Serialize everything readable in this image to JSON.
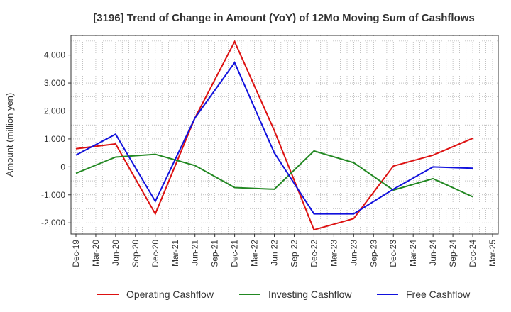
{
  "chart_data": {
    "type": "line",
    "title": "[3196]  Trend of Change in Amount (YoY) of 12Mo Moving Sum of Cashflows",
    "ylabel": "Amount (million yen)",
    "xlabel": "",
    "ylim": [
      -2400,
      4700
    ],
    "yticks": [
      -2000,
      -1000,
      0,
      1000,
      2000,
      3000,
      4000
    ],
    "ytick_labels": [
      "-2,000",
      "-1,000",
      "0",
      "1,000",
      "2,000",
      "3,000",
      "4,000"
    ],
    "categories": [
      "Dec-19",
      "Mar-20",
      "Jun-20",
      "Sep-20",
      "Dec-20",
      "Mar-21",
      "Jun-21",
      "Sep-21",
      "Dec-21",
      "Mar-22",
      "Jun-22",
      "Sep-22",
      "Dec-22",
      "Mar-23",
      "Jun-23",
      "Sep-23",
      "Dec-23",
      "Mar-24",
      "Jun-24",
      "Sep-24",
      "Dec-24",
      "Mar-25"
    ],
    "grid": true,
    "legend_position": "bottom",
    "series": [
      {
        "name": "Operating Cashflow",
        "color": "#dd1111",
        "values": [
          {
            "x": "Dec-19",
            "y": 650
          },
          {
            "x": "Jun-20",
            "y": 820
          },
          {
            "x": "Dec-20",
            "y": -1680
          },
          {
            "x": "Jun-21",
            "y": 1750
          },
          {
            "x": "Dec-21",
            "y": 4480
          },
          {
            "x": "Jun-22",
            "y": 1300
          },
          {
            "x": "Dec-22",
            "y": -2250
          },
          {
            "x": "Jun-23",
            "y": -1850
          },
          {
            "x": "Dec-23",
            "y": 30
          },
          {
            "x": "Jun-24",
            "y": 420
          },
          {
            "x": "Dec-24",
            "y": 1020
          }
        ]
      },
      {
        "name": "Investing Cashflow",
        "color": "#228822",
        "values": [
          {
            "x": "Dec-19",
            "y": -230
          },
          {
            "x": "Jun-20",
            "y": 350
          },
          {
            "x": "Dec-20",
            "y": 450
          },
          {
            "x": "Jun-21",
            "y": 50
          },
          {
            "x": "Dec-21",
            "y": -740
          },
          {
            "x": "Jun-22",
            "y": -800
          },
          {
            "x": "Dec-22",
            "y": 570
          },
          {
            "x": "Jun-23",
            "y": 150
          },
          {
            "x": "Dec-23",
            "y": -830
          },
          {
            "x": "Jun-24",
            "y": -420
          },
          {
            "x": "Dec-24",
            "y": -1070
          }
        ]
      },
      {
        "name": "Free Cashflow",
        "color": "#1111dd",
        "values": [
          {
            "x": "Dec-19",
            "y": 420
          },
          {
            "x": "Jun-20",
            "y": 1170
          },
          {
            "x": "Dec-20",
            "y": -1230
          },
          {
            "x": "Jun-21",
            "y": 1750
          },
          {
            "x": "Dec-21",
            "y": 3730
          },
          {
            "x": "Jun-22",
            "y": 500
          },
          {
            "x": "Dec-22",
            "y": -1680
          },
          {
            "x": "Jun-23",
            "y": -1680
          },
          {
            "x": "Dec-23",
            "y": -800
          },
          {
            "x": "Jun-24",
            "y": 0
          },
          {
            "x": "Dec-24",
            "y": -50
          }
        ]
      }
    ]
  }
}
